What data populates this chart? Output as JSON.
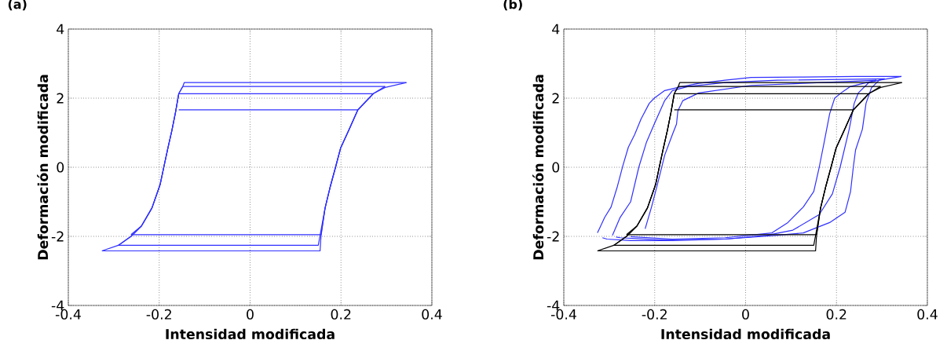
{
  "chart_data": [
    {
      "type": "line",
      "title": "(a)",
      "xlabel": "Intensidad modificada",
      "ylabel": "Deformación modificada",
      "xlim": [
        -0.4,
        0.4
      ],
      "ylim": [
        -4,
        4
      ],
      "xticks": [
        -0.4,
        -0.2,
        0,
        0.2,
        0.4
      ],
      "yticks": [
        -4,
        -2,
        0,
        2,
        4
      ],
      "grid": true,
      "series": [
        {
          "color": "#3030ff",
          "x": [
            -0.326,
            -0.29,
            -0.262,
            -0.239,
            -0.216,
            -0.198,
            -0.19,
            -0.181,
            -0.172,
            -0.164,
            -0.157,
            -0.148,
            -0.145,
            0.344
          ],
          "values": [
            -2.42,
            -2.26,
            -2.0,
            -1.7,
            -1.18,
            -0.5,
            0,
            0.55,
            1.07,
            1.6,
            2.13,
            2.34,
            2.45,
            2.45
          ]
        },
        {
          "color": "#3030ff",
          "x": [
            -0.326,
            0.154,
            0.156,
            0.165,
            0.176,
            0.188,
            0.199,
            0.217,
            0.237,
            0.271,
            0.297,
            0.344
          ],
          "values": [
            -2.42,
            -2.42,
            -2.0,
            -1.18,
            -0.58,
            0,
            0.55,
            1.07,
            1.66,
            2.13,
            2.31,
            2.45
          ]
        },
        {
          "color": "#3030ff",
          "x": [
            -0.29,
            -0.262,
            -0.239,
            -0.216,
            -0.198,
            -0.19,
            -0.181,
            -0.172,
            -0.164,
            -0.157,
            -0.148,
            0.297
          ],
          "values": [
            -2.26,
            -2.0,
            -1.7,
            -1.18,
            -0.5,
            0,
            0.55,
            1.07,
            1.6,
            2.13,
            2.34,
            2.34
          ]
        },
        {
          "color": "#3030ff",
          "x": [
            -0.29,
            0.15,
            0.165,
            0.176,
            0.188,
            0.199,
            0.217,
            0.237,
            0.271,
            0.297
          ],
          "values": [
            -2.26,
            -2.26,
            -1.18,
            -0.58,
            0,
            0.55,
            1.07,
            1.66,
            2.13,
            2.34
          ]
        },
        {
          "color": "#3030ff",
          "x": [
            -0.262,
            -0.239,
            -0.216,
            -0.198,
            -0.19,
            -0.181,
            -0.172,
            -0.164,
            -0.157,
            0.271
          ],
          "values": [
            -1.95,
            -1.7,
            -1.18,
            -0.5,
            0,
            0.55,
            1.07,
            1.6,
            2.13,
            2.13
          ]
        },
        {
          "color": "#3030ff",
          "x": [
            -0.262,
            0.156,
            0.165,
            0.176,
            0.188,
            0.199,
            0.217,
            0.237,
            0.271
          ],
          "values": [
            -1.95,
            -1.95,
            -1.18,
            -0.58,
            0,
            0.55,
            1.07,
            1.66,
            2.13
          ]
        },
        {
          "color": "#3030ff",
          "x": [
            -0.157,
            0.237
          ],
          "values": [
            1.66,
            1.66
          ]
        }
      ]
    },
    {
      "type": "line",
      "title": "(b)",
      "xlabel": "Intensidad modificada",
      "ylabel": "Deformación modificada",
      "xlim": [
        -0.4,
        0.4
      ],
      "ylim": [
        -4,
        4
      ],
      "xticks": [
        -0.4,
        -0.2,
        0,
        0.2,
        0.4
      ],
      "yticks": [
        -4,
        -2,
        0,
        2,
        4
      ],
      "grid": true,
      "series": [
        {
          "color": "#3030ff",
          "x": [
            -0.326,
            -0.31,
            -0.296,
            -0.282,
            -0.27,
            -0.258,
            -0.244,
            -0.23,
            -0.212,
            -0.201,
            -0.178,
            -0.149,
            -0.103,
            -0.045,
            0.012,
            0.127,
            0.242,
            0.343
          ],
          "values": [
            -1.9,
            -1.45,
            -1.15,
            -0.55,
            0.05,
            0.58,
            0.95,
            1.4,
            1.85,
            2.0,
            2.22,
            2.31,
            2.43,
            2.52,
            2.6,
            2.61,
            2.63,
            2.63
          ]
        },
        {
          "color": "#3030ff",
          "x": [
            -0.315,
            -0.305,
            -0.253,
            -0.161,
            -0.045,
            0.07,
            0.127,
            0.185,
            0.219,
            0.231,
            0.237,
            0.242,
            0.257,
            0.265,
            0.277,
            0.294,
            0.343
          ],
          "values": [
            -2.04,
            -2.08,
            -2.12,
            -2.12,
            -2.08,
            -1.97,
            -1.9,
            -1.6,
            -1.3,
            -0.7,
            0,
            0.5,
            1.1,
            1.85,
            2.3,
            2.52,
            2.63
          ]
        },
        {
          "color": "#3030ff",
          "x": [
            -0.293,
            -0.276,
            -0.253,
            -0.235,
            -0.218,
            -0.201,
            -0.178,
            -0.161,
            -0.126,
            -0.045,
            0.07,
            0.306
          ],
          "values": [
            -1.97,
            -1.45,
            -1.0,
            0,
            0.73,
            1.25,
            1.93,
            2.22,
            2.34,
            2.45,
            2.52,
            2.56
          ]
        },
        {
          "color": "#3030ff",
          "x": [
            -0.285,
            -0.276,
            -0.189,
            -0.045,
            0.047,
            0.104,
            0.162,
            0.191,
            0.208,
            0.228,
            0.239,
            0.248,
            0.271,
            0.306
          ],
          "values": [
            -2.02,
            -2.04,
            -2.1,
            -2.08,
            -1.97,
            -1.82,
            -1.37,
            -0.77,
            0,
            1.1,
            1.85,
            2.15,
            2.45,
            2.56
          ]
        },
        {
          "color": "#3030ff",
          "x": [
            -0.221,
            -0.207,
            -0.195,
            -0.178,
            -0.161,
            -0.152,
            -0.149,
            -0.138,
            -0.103,
            0.012,
            0.242,
            0.288
          ],
          "values": [
            -1.78,
            -1.15,
            -0.55,
            0.35,
            0.95,
            1.25,
            1.63,
            1.93,
            2.15,
            2.37,
            2.49,
            2.52
          ]
        },
        {
          "color": "#3030ff",
          "x": [
            -0.253,
            -0.161,
            -0.045,
            0.058,
            0.093,
            0.127,
            0.15,
            0.162,
            0.173,
            0.185,
            0.196,
            0.214,
            0.231,
            0.288
          ],
          "values": [
            -2.01,
            -2.08,
            -2.04,
            -1.9,
            -1.6,
            -1.15,
            -0.7,
            0,
            0.73,
            1.55,
            2.0,
            2.19,
            2.34,
            2.52
          ]
        },
        {
          "color": "#000000",
          "x": [
            -0.326,
            -0.29,
            -0.262,
            -0.239,
            -0.216,
            -0.198,
            -0.19,
            -0.181,
            -0.172,
            -0.164,
            -0.157,
            -0.148,
            -0.145,
            0.344
          ],
          "values": [
            -2.42,
            -2.26,
            -2.0,
            -1.7,
            -1.18,
            -0.5,
            0,
            0.55,
            1.07,
            1.6,
            2.13,
            2.34,
            2.45,
            2.45
          ]
        },
        {
          "color": "#000000",
          "x": [
            -0.326,
            0.154,
            0.156,
            0.165,
            0.176,
            0.188,
            0.199,
            0.217,
            0.237,
            0.271,
            0.297,
            0.344
          ],
          "values": [
            -2.42,
            -2.42,
            -2.0,
            -1.18,
            -0.58,
            0,
            0.55,
            1.07,
            1.66,
            2.13,
            2.31,
            2.45
          ]
        },
        {
          "color": "#000000",
          "x": [
            -0.29,
            -0.262,
            -0.239,
            -0.216,
            -0.198,
            -0.19,
            -0.181,
            -0.172,
            -0.164,
            -0.157,
            -0.148,
            0.297
          ],
          "values": [
            -2.26,
            -2.0,
            -1.7,
            -1.18,
            -0.5,
            0,
            0.55,
            1.07,
            1.6,
            2.13,
            2.34,
            2.34
          ]
        },
        {
          "color": "#000000",
          "x": [
            -0.29,
            0.15,
            0.165,
            0.176,
            0.188,
            0.199,
            0.217,
            0.237,
            0.271,
            0.297
          ],
          "values": [
            -2.26,
            -2.26,
            -1.18,
            -0.58,
            0,
            0.55,
            1.07,
            1.66,
            2.13,
            2.34
          ]
        },
        {
          "color": "#000000",
          "x": [
            -0.262,
            -0.239,
            -0.216,
            -0.198,
            -0.19,
            -0.181,
            -0.172,
            -0.164,
            -0.157,
            0.271
          ],
          "values": [
            -1.95,
            -1.7,
            -1.18,
            -0.5,
            0,
            0.55,
            1.07,
            1.6,
            2.13,
            2.13
          ]
        },
        {
          "color": "#000000",
          "x": [
            -0.262,
            0.156,
            0.165,
            0.176,
            0.188,
            0.199,
            0.217,
            0.237,
            0.271
          ],
          "values": [
            -1.95,
            -1.95,
            -1.18,
            -0.58,
            0,
            0.55,
            1.07,
            1.66,
            2.13
          ]
        },
        {
          "color": "#000000",
          "x": [
            -0.157,
            0.237
          ],
          "values": [
            1.66,
            1.66
          ]
        }
      ]
    }
  ]
}
